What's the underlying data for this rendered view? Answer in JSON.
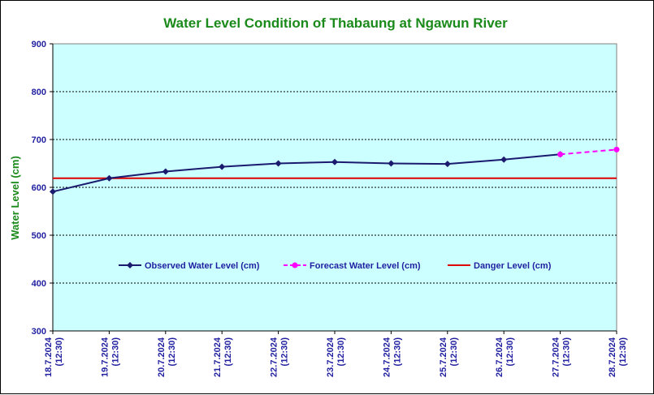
{
  "chart_data": {
    "type": "line",
    "title": "Water Level Condition of Thabaung at Ngawun River",
    "ylabel": "Water Level (cm)",
    "xlabel": "",
    "ylim": [
      300,
      900
    ],
    "yticks": [
      300,
      400,
      500,
      600,
      700,
      800,
      900
    ],
    "categories": [
      "18.7.2024|(12:30)",
      "19.7.2024|(12:30)",
      "20.7.2024|(12:30)",
      "21.7.2024|(12:30)",
      "22.7.2024|(12:30)",
      "23.7.2024|(12:30)",
      "24.7.2024|(12:30)",
      "25.7.2024|(12:30)",
      "26.7.2024|(12:30)",
      "27.7.2024|(12:30)",
      "28.7.2024|(12:30)"
    ],
    "series": [
      {
        "name": "Observed Water Level (cm)",
        "color": "#1a1a6e",
        "values": [
          591,
          619,
          633,
          643,
          650,
          653,
          650,
          649,
          658,
          669,
          null
        ]
      },
      {
        "name": "Forecast Water Level (cm)",
        "color": "#ff00ff",
        "values": [
          null,
          null,
          null,
          null,
          null,
          null,
          null,
          null,
          null,
          669,
          679
        ]
      },
      {
        "name": "Danger Level (cm)",
        "color": "#dd0000",
        "values": [
          619,
          619,
          619,
          619,
          619,
          619,
          619,
          619,
          619,
          619,
          619
        ]
      }
    ],
    "grid": true,
    "legend_position": "center",
    "plot_background": "#ccffff"
  }
}
